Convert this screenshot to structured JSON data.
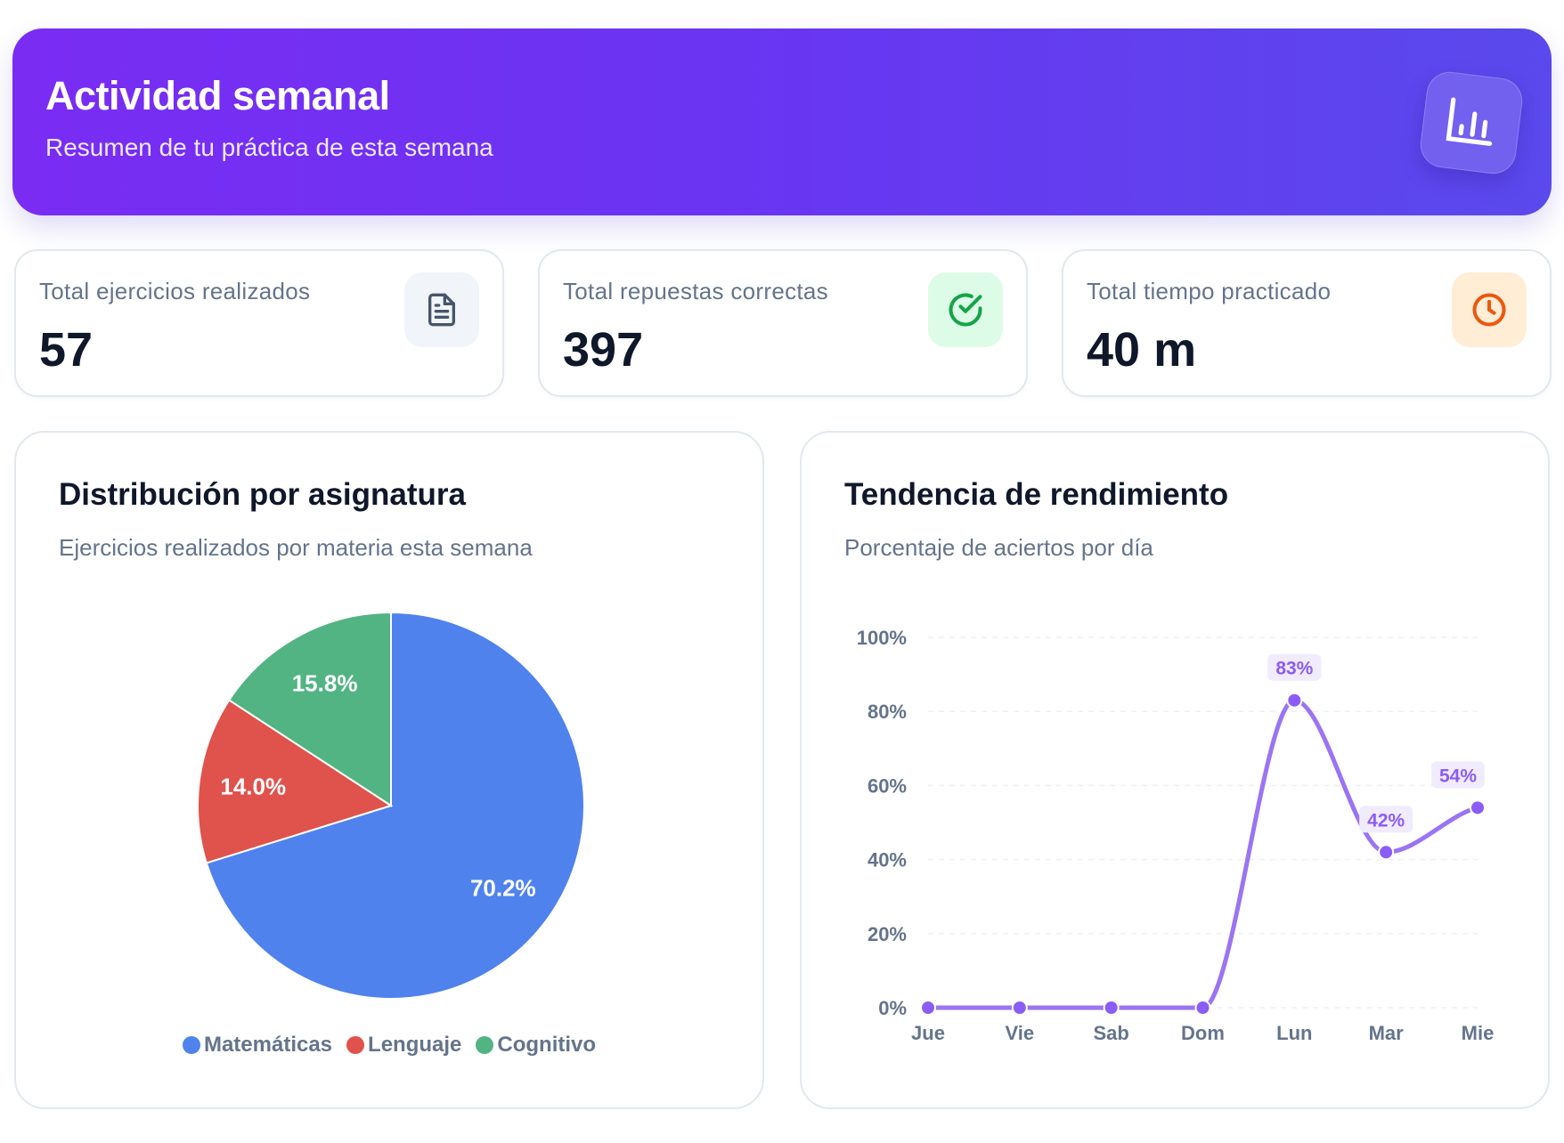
{
  "header": {
    "title": "Actividad semanal",
    "subtitle": "Resumen de tu práctica de esta semana",
    "icon": "bar-chart-icon"
  },
  "stats": [
    {
      "label": "Total ejercicios realizados",
      "value": "57",
      "icon": "document-icon",
      "icon_bg": "#f1f5f9",
      "icon_color": "#475569"
    },
    {
      "label": "Total repuestas correctas",
      "value": "397",
      "icon": "check-circle-icon",
      "icon_bg": "#dcfce7",
      "icon_color": "#16a34a"
    },
    {
      "label": "Total tiempo practicado",
      "value": "40 m",
      "icon": "clock-icon",
      "icon_bg": "#ffedd5",
      "icon_color": "#ea580c"
    }
  ],
  "distribution": {
    "title": "Distribución por asignatura",
    "subtitle": "Ejercicios realizados por materia esta semana",
    "chart_data": {
      "type": "pie",
      "slices": [
        {
          "name": "Matemáticas",
          "value": 70.2,
          "label": "70.2%",
          "color": "#4f82ec"
        },
        {
          "name": "Lenguaje",
          "value": 14.0,
          "label": "14.0%",
          "color": "#e0524c"
        },
        {
          "name": "Cognitivo",
          "value": 15.8,
          "label": "15.8%",
          "color": "#52b483"
        }
      ],
      "legend": "bottom"
    }
  },
  "trend": {
    "title": "Tendencia de rendimiento",
    "subtitle": "Porcentaje de aciertos por día",
    "chart_data": {
      "type": "line",
      "categories": [
        "Jue",
        "Vie",
        "Sab",
        "Dom",
        "Lun",
        "Mar",
        "Mie"
      ],
      "values": [
        0,
        0,
        0,
        0,
        83,
        42,
        54
      ],
      "data_labels": [
        "",
        "",
        "",
        "",
        "83%",
        "42%",
        "54%"
      ],
      "ylim": [
        0,
        100
      ],
      "yticks": [
        "0%",
        "20%",
        "40%",
        "60%",
        "80%",
        "100%"
      ],
      "grid": true,
      "color": "#8b5cf6"
    }
  }
}
